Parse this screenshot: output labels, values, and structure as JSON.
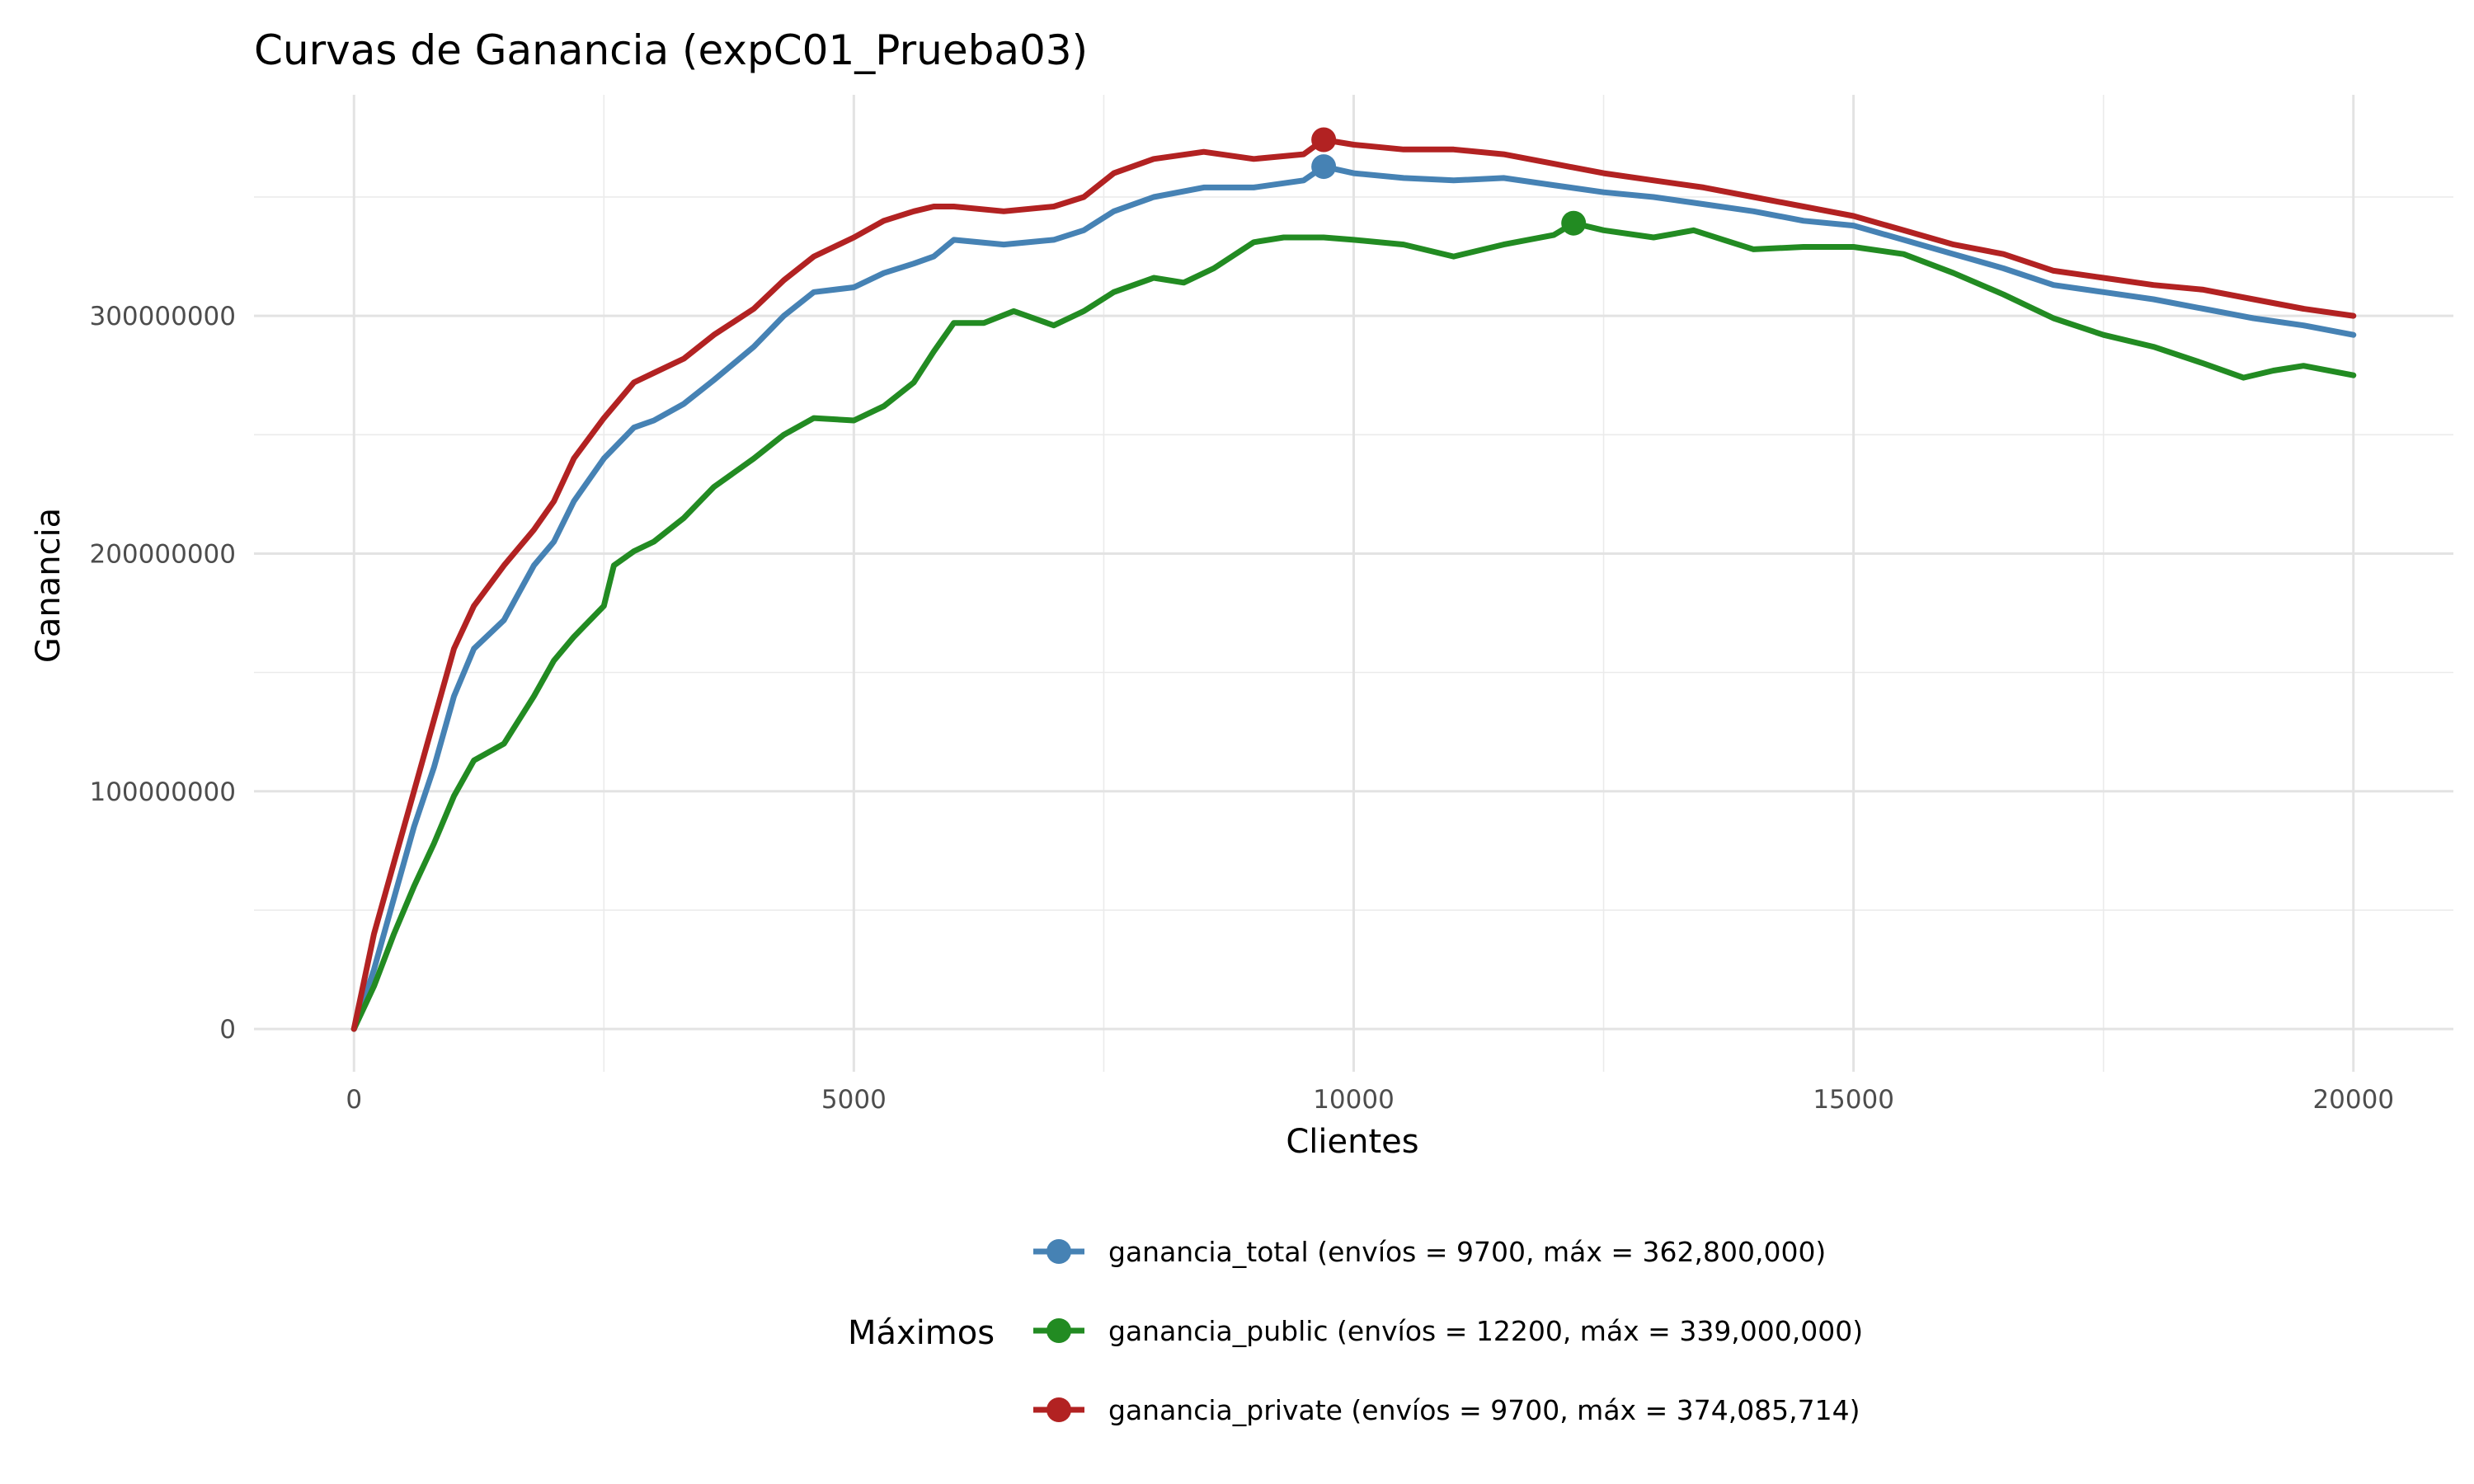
{
  "chart_data": {
    "type": "line",
    "title": "Curvas de Ganancia (expC01_Prueba03)",
    "xlabel": "Clientes",
    "ylabel": "Ganancia",
    "xlim": [
      -1000,
      21000
    ],
    "ylim": [
      -18000000,
      393000000
    ],
    "x_ticks": [
      0,
      5000,
      10000,
      15000,
      20000
    ],
    "y_ticks": [
      0,
      100000000,
      200000000,
      300000000
    ],
    "x_tick_labels": [
      "0",
      "5000",
      "10000",
      "15000",
      "20000"
    ],
    "y_tick_labels": [
      "0",
      "100000000",
      "200000000",
      "300000000"
    ],
    "grid": true,
    "legend": {
      "title": "Máximos",
      "position": "bottom",
      "labels": [
        "ganancia_total (envíos = 9700, máx = 362,800,000)",
        "ganancia_public (envíos = 12200, máx = 339,000,000)",
        "ganancia_private (envíos = 9700, máx = 374,085,714)"
      ]
    },
    "series": [
      {
        "key": "ganancia_total",
        "color": "#4682b4",
        "max_point": [
          9700,
          362800000
        ],
        "points": [
          [
            0,
            0
          ],
          [
            200,
            25000000
          ],
          [
            400,
            55000000
          ],
          [
            600,
            85000000
          ],
          [
            800,
            110000000
          ],
          [
            1000,
            140000000
          ],
          [
            1200,
            160000000
          ],
          [
            1500,
            172000000
          ],
          [
            1800,
            195000000
          ],
          [
            2000,
            205000000
          ],
          [
            2200,
            222000000
          ],
          [
            2500,
            240000000
          ],
          [
            2800,
            253000000
          ],
          [
            3000,
            256000000
          ],
          [
            3300,
            263000000
          ],
          [
            3600,
            273000000
          ],
          [
            4000,
            287000000
          ],
          [
            4300,
            300000000
          ],
          [
            4600,
            310000000
          ],
          [
            5000,
            312000000
          ],
          [
            5300,
            318000000
          ],
          [
            5600,
            322000000
          ],
          [
            5800,
            325000000
          ],
          [
            6000,
            332000000
          ],
          [
            6500,
            330000000
          ],
          [
            7000,
            332000000
          ],
          [
            7300,
            336000000
          ],
          [
            7600,
            344000000
          ],
          [
            8000,
            350000000
          ],
          [
            8500,
            354000000
          ],
          [
            9000,
            354000000
          ],
          [
            9500,
            357000000
          ],
          [
            9700,
            362800000
          ],
          [
            10000,
            360000000
          ],
          [
            10500,
            358000000
          ],
          [
            11000,
            357000000
          ],
          [
            11500,
            358000000
          ],
          [
            12000,
            355000000
          ],
          [
            12500,
            352000000
          ],
          [
            13000,
            350000000
          ],
          [
            13500,
            347000000
          ],
          [
            14000,
            344000000
          ],
          [
            14500,
            340000000
          ],
          [
            15000,
            338000000
          ],
          [
            15500,
            332000000
          ],
          [
            16000,
            326000000
          ],
          [
            16500,
            320000000
          ],
          [
            17000,
            313000000
          ],
          [
            17500,
            310000000
          ],
          [
            18000,
            307000000
          ],
          [
            18500,
            303000000
          ],
          [
            19000,
            299000000
          ],
          [
            19500,
            296000000
          ],
          [
            20000,
            292000000
          ]
        ]
      },
      {
        "key": "ganancia_public",
        "color": "#228b22",
        "max_point": [
          12200,
          339000000
        ],
        "points": [
          [
            0,
            0
          ],
          [
            200,
            18000000
          ],
          [
            400,
            40000000
          ],
          [
            600,
            60000000
          ],
          [
            800,
            78000000
          ],
          [
            1000,
            98000000
          ],
          [
            1200,
            113000000
          ],
          [
            1500,
            120000000
          ],
          [
            1800,
            140000000
          ],
          [
            2000,
            155000000
          ],
          [
            2200,
            165000000
          ],
          [
            2500,
            178000000
          ],
          [
            2600,
            195000000
          ],
          [
            2800,
            201000000
          ],
          [
            3000,
            205000000
          ],
          [
            3300,
            215000000
          ],
          [
            3600,
            228000000
          ],
          [
            4000,
            240000000
          ],
          [
            4300,
            250000000
          ],
          [
            4600,
            257000000
          ],
          [
            5000,
            256000000
          ],
          [
            5300,
            262000000
          ],
          [
            5600,
            272000000
          ],
          [
            5800,
            285000000
          ],
          [
            6000,
            297000000
          ],
          [
            6300,
            297000000
          ],
          [
            6600,
            302000000
          ],
          [
            7000,
            296000000
          ],
          [
            7300,
            302000000
          ],
          [
            7600,
            310000000
          ],
          [
            8000,
            316000000
          ],
          [
            8300,
            314000000
          ],
          [
            8600,
            320000000
          ],
          [
            9000,
            331000000
          ],
          [
            9300,
            333000000
          ],
          [
            9700,
            333000000
          ],
          [
            10000,
            332000000
          ],
          [
            10500,
            330000000
          ],
          [
            11000,
            325000000
          ],
          [
            11500,
            330000000
          ],
          [
            12000,
            334000000
          ],
          [
            12200,
            339000000
          ],
          [
            12500,
            336000000
          ],
          [
            13000,
            333000000
          ],
          [
            13400,
            336000000
          ],
          [
            13700,
            332000000
          ],
          [
            14000,
            328000000
          ],
          [
            14500,
            329000000
          ],
          [
            15000,
            329000000
          ],
          [
            15500,
            326000000
          ],
          [
            16000,
            318000000
          ],
          [
            16500,
            309000000
          ],
          [
            17000,
            299000000
          ],
          [
            17500,
            292000000
          ],
          [
            18000,
            287000000
          ],
          [
            18500,
            280000000
          ],
          [
            18900,
            274000000
          ],
          [
            19200,
            277000000
          ],
          [
            19500,
            279000000
          ],
          [
            20000,
            275000000
          ]
        ]
      },
      {
        "key": "ganancia_private",
        "color": "#b22222",
        "max_point": [
          9700,
          374085714
        ],
        "points": [
          [
            0,
            0
          ],
          [
            200,
            40000000
          ],
          [
            400,
            70000000
          ],
          [
            600,
            100000000
          ],
          [
            800,
            130000000
          ],
          [
            1000,
            160000000
          ],
          [
            1200,
            178000000
          ],
          [
            1500,
            195000000
          ],
          [
            1800,
            210000000
          ],
          [
            2000,
            222000000
          ],
          [
            2200,
            240000000
          ],
          [
            2500,
            257000000
          ],
          [
            2800,
            272000000
          ],
          [
            3000,
            276000000
          ],
          [
            3300,
            282000000
          ],
          [
            3600,
            292000000
          ],
          [
            4000,
            303000000
          ],
          [
            4300,
            315000000
          ],
          [
            4600,
            325000000
          ],
          [
            5000,
            333000000
          ],
          [
            5300,
            340000000
          ],
          [
            5600,
            344000000
          ],
          [
            5800,
            346000000
          ],
          [
            6000,
            346000000
          ],
          [
            6500,
            344000000
          ],
          [
            7000,
            346000000
          ],
          [
            7300,
            350000000
          ],
          [
            7600,
            360000000
          ],
          [
            8000,
            366000000
          ],
          [
            8500,
            369000000
          ],
          [
            9000,
            366000000
          ],
          [
            9500,
            368000000
          ],
          [
            9700,
            374085714
          ],
          [
            10000,
            372000000
          ],
          [
            10500,
            370000000
          ],
          [
            11000,
            370000000
          ],
          [
            11500,
            368000000
          ],
          [
            12000,
            364000000
          ],
          [
            12500,
            360000000
          ],
          [
            13000,
            357000000
          ],
          [
            13500,
            354000000
          ],
          [
            14000,
            350000000
          ],
          [
            14500,
            346000000
          ],
          [
            15000,
            342000000
          ],
          [
            15500,
            336000000
          ],
          [
            16000,
            330000000
          ],
          [
            16500,
            326000000
          ],
          [
            17000,
            319000000
          ],
          [
            17500,
            316000000
          ],
          [
            18000,
            313000000
          ],
          [
            18500,
            311000000
          ],
          [
            19000,
            307000000
          ],
          [
            19500,
            303000000
          ],
          [
            20000,
            300000000
          ]
        ]
      }
    ]
  }
}
